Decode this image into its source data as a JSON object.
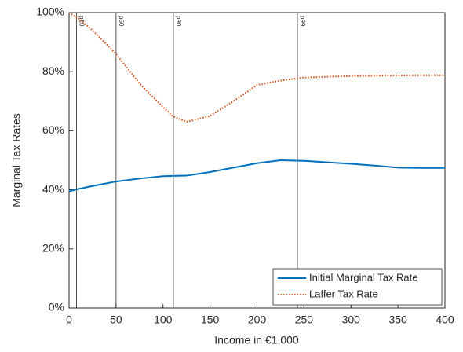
{
  "chart_data": {
    "type": "line",
    "xlabel": "Income in €1,000",
    "ylabel": "Marginal Tax Rates",
    "x": [
      0,
      10,
      25,
      50,
      75,
      100,
      110,
      125,
      150,
      175,
      200,
      225,
      250,
      275,
      300,
      325,
      350,
      375,
      400
    ],
    "series": [
      {
        "name": "Initial Marginal Tax Rate",
        "color": "#0072bd",
        "style": "solid",
        "values": [
          39.5,
          40.3,
          41.3,
          42.8,
          43.8,
          44.6,
          44.7,
          44.8,
          46,
          47.5,
          49,
          50,
          49.8,
          49.3,
          48.8,
          48.2,
          47.5,
          47.4,
          47.4
        ]
      },
      {
        "name": "Laffer Tax Rate",
        "color": "#d95319",
        "style": "dotted",
        "values": [
          100,
          98,
          94,
          86,
          76,
          68,
          65,
          63,
          65,
          70,
          75.5,
          77,
          78,
          78.3,
          78.5,
          78.6,
          78.7,
          78.8,
          78.8
        ]
      }
    ],
    "annotations": [
      {
        "label": "p10",
        "x": 8
      },
      {
        "label": "p50",
        "x": 50
      },
      {
        "label": "p90",
        "x": 111
      },
      {
        "label": "p99",
        "x": 243
      }
    ],
    "xlim": [
      0,
      400
    ],
    "xticks": [
      0,
      50,
      100,
      150,
      200,
      250,
      300,
      350,
      400
    ],
    "ylim": [
      0,
      100
    ],
    "yticks": [
      {
        "value": 0,
        "label": "0%"
      },
      {
        "value": 20,
        "label": "20%"
      },
      {
        "value": 40,
        "label": "40%"
      },
      {
        "value": 60,
        "label": "60%"
      },
      {
        "value": 80,
        "label": "80%"
      },
      {
        "value": 100,
        "label": "100%"
      }
    ],
    "legend": "lower right",
    "grid": false
  }
}
